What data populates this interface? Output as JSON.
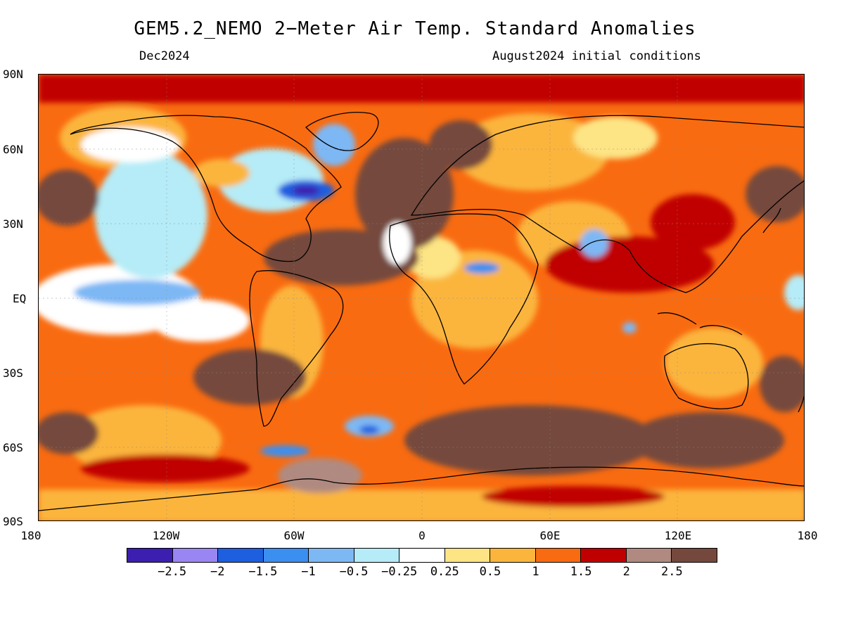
{
  "title": "GEM5.2_NEMO 2−Meter Air Temp. Standard Anomalies",
  "subtitle_left": "Dec2024",
  "subtitle_right": "August2024 initial conditions",
  "latitude_labels": [
    "90N",
    "60N",
    "30N",
    "EQ",
    "30S",
    "60S",
    "90S"
  ],
  "longitude_labels": [
    "180",
    "120W",
    "60W",
    "0",
    "60E",
    "120E",
    "180"
  ],
  "legend": {
    "colors": [
      "#3c1fb0",
      "#9a86f2",
      "#1e5fe0",
      "#3b8ff0",
      "#7db8f5",
      "#b5ecf7",
      "#ffffff",
      "#fde484",
      "#fbb53c",
      "#f96b10",
      "#c00000",
      "#b08a80",
      "#74483c"
    ],
    "labels": [
      "−2.5",
      "−2",
      "−1.5",
      "−1",
      "−0.5",
      "−0.25",
      "0.25",
      "0.5",
      "1",
      "1.5",
      "2",
      "2.5"
    ]
  }
}
